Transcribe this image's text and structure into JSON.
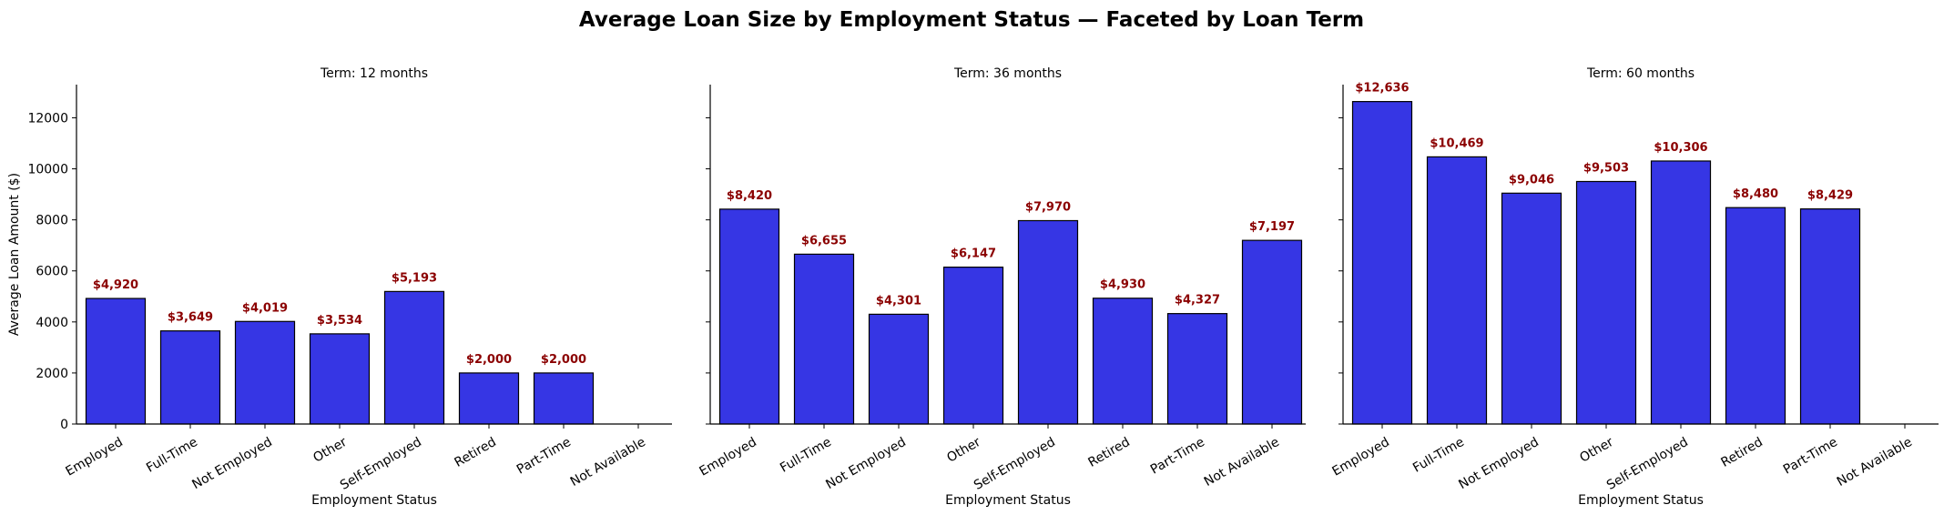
{
  "title": "Average Loan Size by Employment Status — Faceted by Loan Term",
  "colors": {
    "bar_fill": "#3636e4",
    "bar_edge": "#000000",
    "data_label": "#8b0000",
    "axis": "#000000"
  },
  "chart_data": [
    {
      "type": "bar",
      "title": "Term: 12 months",
      "xlabel": "Employment Status",
      "ylabel": "Average Loan Amount ($)",
      "ylim": [
        0,
        13300
      ],
      "yticks": [
        0,
        2000,
        4000,
        6000,
        8000,
        10000,
        12000
      ],
      "categories": [
        "Employed",
        "Full-Time",
        "Not Employed",
        "Other",
        "Self-Employed",
        "Retired",
        "Part-Time",
        "Not Available"
      ],
      "values": [
        4920,
        3649,
        4019,
        3534,
        5193,
        2000,
        2000,
        null
      ],
      "data_labels": [
        "$4,920",
        "$3,649",
        "$4,019",
        "$3,534",
        "$5,193",
        "$2,000",
        "$2,000",
        null
      ],
      "grid": false
    },
    {
      "type": "bar",
      "title": "Term: 36 months",
      "xlabel": "Employment Status",
      "ylabel": "",
      "ylim": [
        0,
        13300
      ],
      "yticks": [
        0,
        2000,
        4000,
        6000,
        8000,
        10000,
        12000
      ],
      "categories": [
        "Employed",
        "Full-Time",
        "Not Employed",
        "Other",
        "Self-Employed",
        "Retired",
        "Part-Time",
        "Not Available"
      ],
      "values": [
        8420,
        6655,
        4301,
        6147,
        7970,
        4930,
        4327,
        7197
      ],
      "data_labels": [
        "$8,420",
        "$6,655",
        "$4,301",
        "$6,147",
        "$7,970",
        "$4,930",
        "$4,327",
        "$7,197"
      ],
      "grid": false
    },
    {
      "type": "bar",
      "title": "Term: 60 months",
      "xlabel": "Employment Status",
      "ylabel": "",
      "ylim": [
        0,
        13300
      ],
      "yticks": [
        0,
        2000,
        4000,
        6000,
        8000,
        10000,
        12000
      ],
      "categories": [
        "Employed",
        "Full-Time",
        "Not Employed",
        "Other",
        "Self-Employed",
        "Retired",
        "Part-Time",
        "Not Available"
      ],
      "values": [
        12636,
        10469,
        9046,
        9503,
        10306,
        8480,
        8429,
        null
      ],
      "data_labels": [
        "$12,636",
        "$10,469",
        "$9,046",
        "$9,503",
        "$10,306",
        "$8,480",
        "$8,429",
        null
      ],
      "grid": false
    }
  ]
}
